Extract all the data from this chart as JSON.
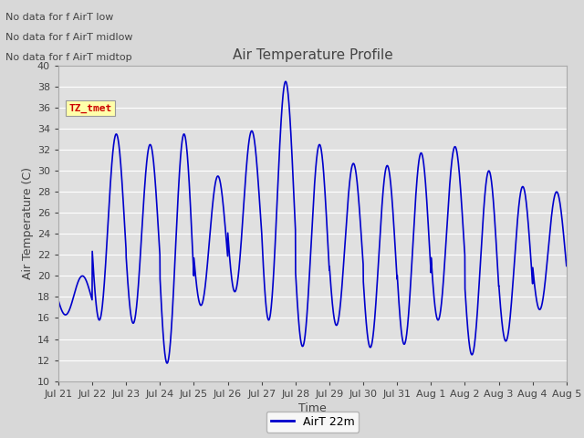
{
  "title": "Air Temperature Profile",
  "xlabel": "Time",
  "ylabel": "Air Temperature (C)",
  "ylim": [
    10,
    40
  ],
  "yticks": [
    10,
    12,
    14,
    16,
    18,
    20,
    22,
    24,
    26,
    28,
    30,
    32,
    34,
    36,
    38,
    40
  ],
  "line_color": "#0000cc",
  "line_width": 1.2,
  "background_color": "#d8d8d8",
  "plot_bg_color": "#e0e0e0",
  "grid_color": "#ffffff",
  "legend_label": "AirT 22m",
  "annotations": [
    "No data for f AirT low",
    "No data for f̲AirT̲midlow",
    "No data for f̲AirT̲midtop"
  ],
  "ann_plain": [
    "No data for f AirT low",
    "No data for f AirT midlow",
    "No data for f AirT midtop"
  ],
  "watermark_text": "TZ_tmet",
  "watermark_color": "#cc0000",
  "watermark_bg": "#ffffaa",
  "x_tick_labels": [
    "Jul 21",
    "Jul 22",
    "Jul 23",
    "Jul 24",
    "Jul 25",
    "Jul 26",
    "Jul 27",
    "Jul 28",
    "Jul 29",
    "Jul 30",
    "Jul 31",
    "Aug 1",
    "Aug 2",
    "Aug 3",
    "Aug 4",
    "Aug 5"
  ],
  "daily_mins": [
    16.3,
    15.8,
    15.5,
    11.7,
    17.2,
    18.5,
    15.8,
    13.3,
    15.3,
    13.2,
    13.5,
    15.8,
    12.5,
    13.8,
    16.8
  ],
  "daily_maxs": [
    20.0,
    33.5,
    32.5,
    33.5,
    29.5,
    33.8,
    38.5,
    32.5,
    30.7,
    30.5,
    31.7,
    32.3,
    30.0,
    28.5,
    28.0
  ],
  "peak_hours": [
    14,
    14,
    14,
    14,
    14,
    14,
    14,
    14,
    14,
    14,
    14,
    14,
    14,
    14,
    14
  ],
  "min_hours": [
    5,
    5,
    5,
    5,
    5,
    5,
    5,
    5,
    5,
    5,
    5,
    5,
    5,
    5,
    5
  ]
}
